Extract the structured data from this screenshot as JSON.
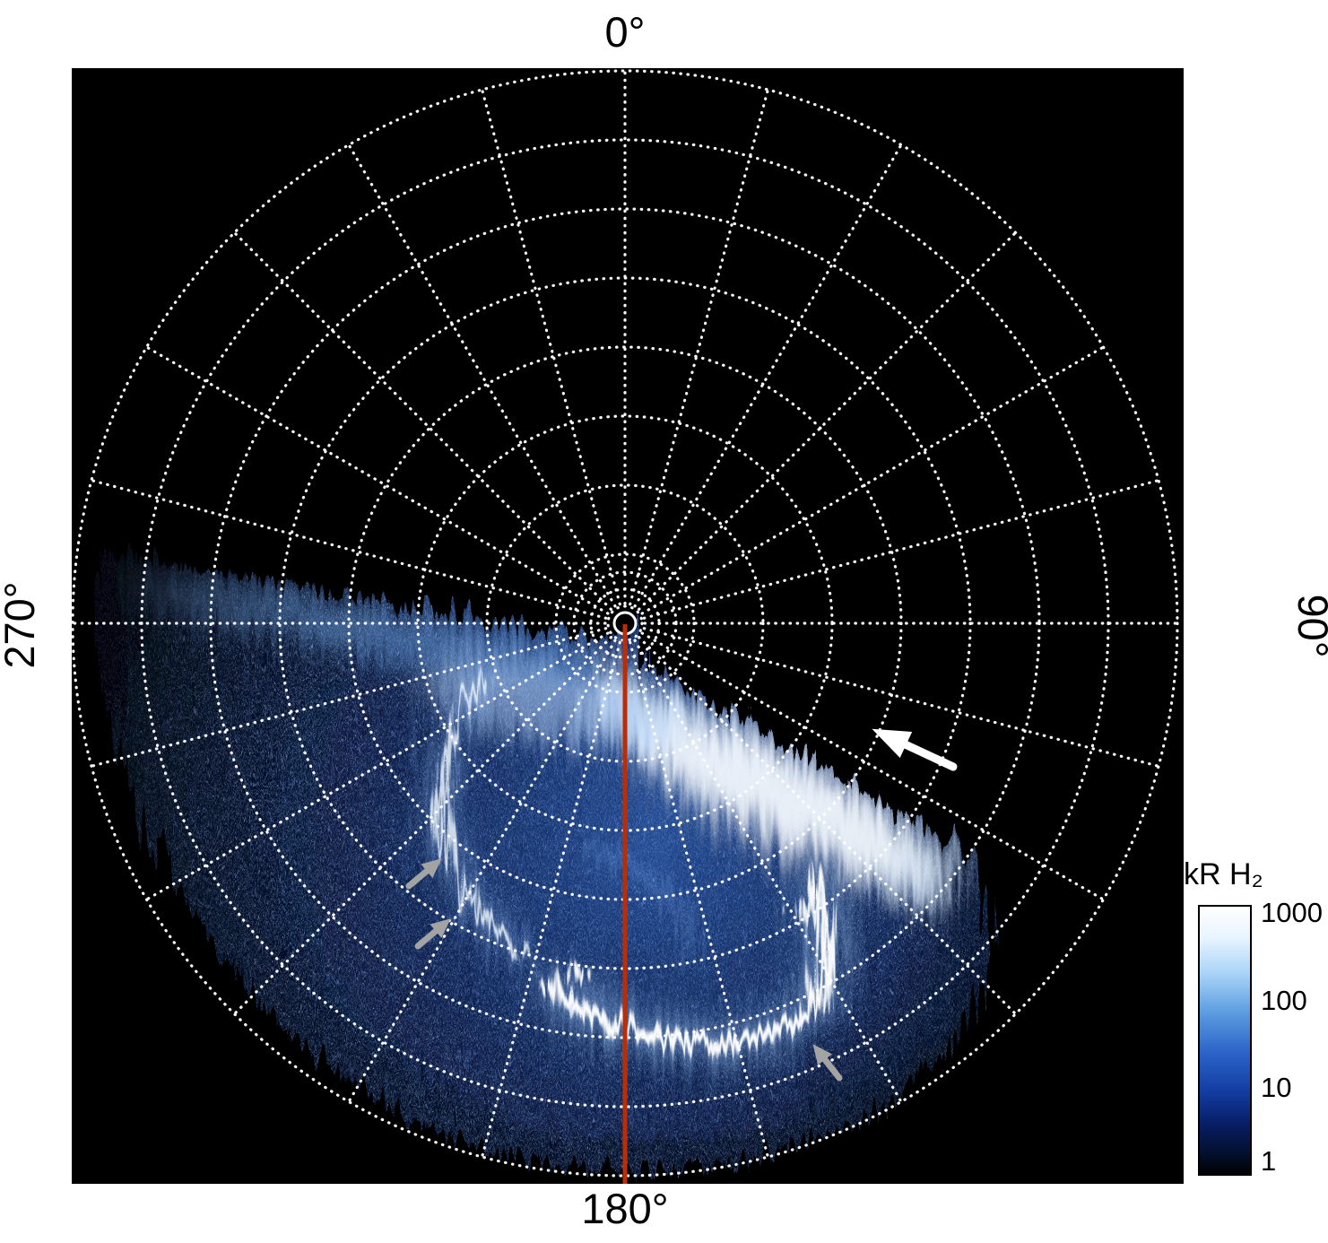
{
  "chart_data": {
    "type": "heatmap",
    "projection": "polar",
    "description": "Polar projection map of auroral H2 emission. Speckled blue emission fills the lower half of the polar grid below a jagged terminator-like edge, containing a thin bright auroral oval arc on the left, a very bright arc at the bottom, and a broad bright band just below the jagged edge. A dotted white polar grid overlays the map, a red meridian line runs from the pole to 180 degrees, and white/gray arrows mark auroral features.",
    "angle_labels": {
      "top": "0°",
      "right": "90°",
      "bottom": "180°",
      "left": "270°"
    },
    "grid": {
      "style": "dotted",
      "rings": 8,
      "spoke_step_deg": 15
    },
    "meridian_line": {
      "angle_deg": 180,
      "color": "#bb2d07"
    },
    "intensity_scale": {
      "unit": "kR H₂",
      "scale": "log",
      "min": 1,
      "max": 1000
    },
    "colorbar": {
      "label": "kR H₂",
      "scale": "log",
      "ticks": [
        "1000",
        "100",
        "10",
        "1"
      ],
      "top_color": "#ffffff",
      "bottom_color": "#000000"
    },
    "annotations": [
      {
        "type": "arrow",
        "color": "#ffffff",
        "target": "jagged emission edge (upper right)"
      },
      {
        "type": "arrow",
        "color": "#a3a3a3",
        "target": "auroral oval arc (left, upper)"
      },
      {
        "type": "arrow",
        "color": "#a3a3a3",
        "target": "auroral oval arc (left, lower)"
      },
      {
        "type": "arrow",
        "color": "#a3a3a3",
        "target": "bright auroral arc (bottom right)"
      }
    ]
  }
}
